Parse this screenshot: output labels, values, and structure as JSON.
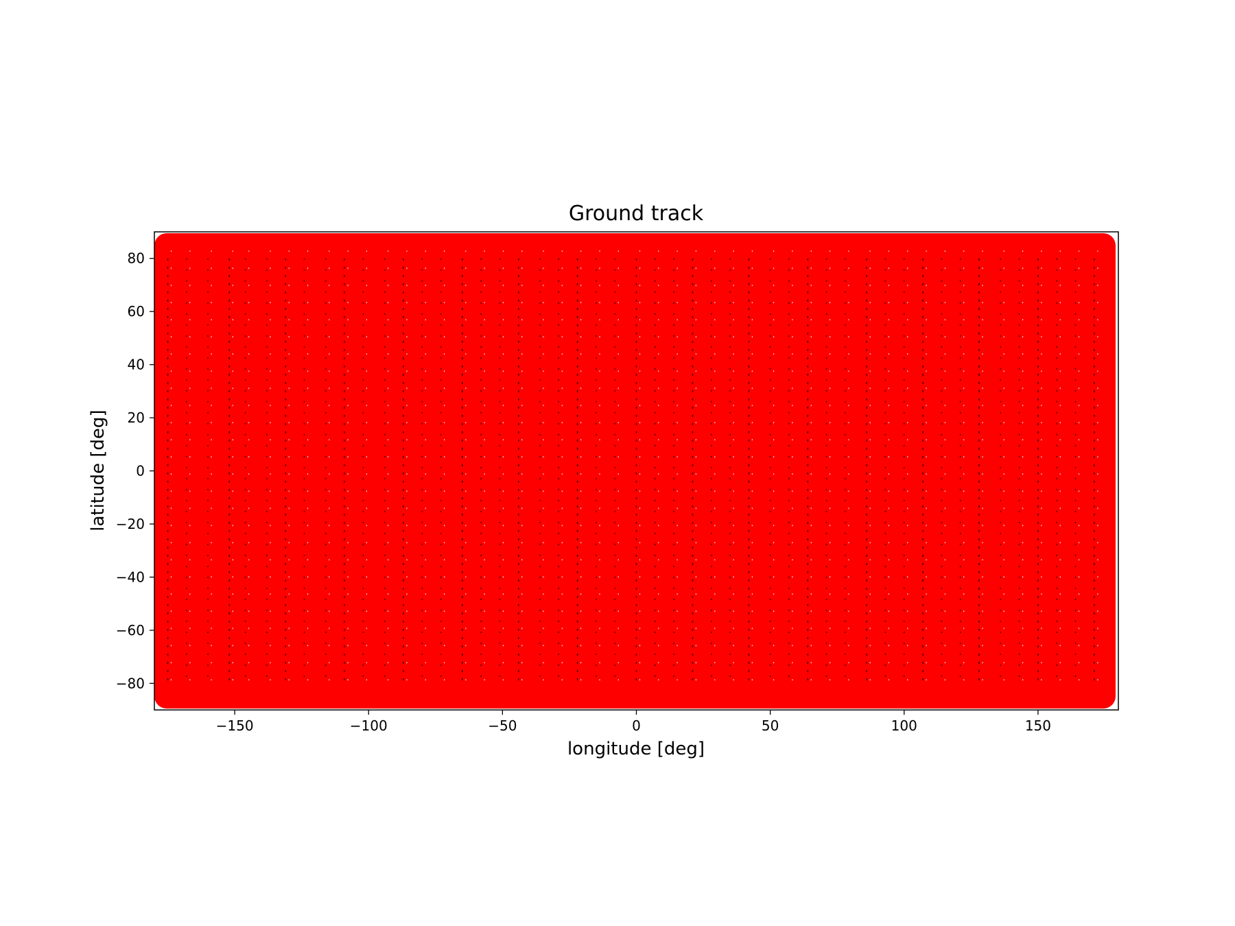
{
  "chart_data": {
    "type": "scatter",
    "title": "Ground track",
    "xlabel": "longitude [deg]",
    "ylabel": "latitude [deg]",
    "xlim": [
      -180,
      180
    ],
    "ylim": [
      -90,
      90
    ],
    "xticks": [
      -150,
      -100,
      -50,
      0,
      50,
      100,
      150
    ],
    "xtick_labels": [
      "−150",
      "−100",
      "−50",
      "0",
      "50",
      "100",
      "150"
    ],
    "yticks": [
      -80,
      -60,
      -40,
      -20,
      0,
      20,
      40,
      60,
      80
    ],
    "ytick_labels": [
      "−80",
      "−60",
      "−40",
      "−20",
      "0",
      "20",
      "40",
      "60",
      "80"
    ],
    "grid": false,
    "legend": "none",
    "track_color": "#ff0000",
    "gap_color": "#000000",
    "background_color": "#ffffff",
    "series": [
      {
        "description_free": true,
        "color": "#ff0000",
        "coverage": "dense polar-orbit ground track filling longitudes -180 to 180 and latitudes -90 to 90",
        "lat_range": [
          -90,
          90
        ],
        "lon_range": [
          -180,
          180
        ]
      }
    ],
    "gap_lines_lon": [
      -175,
      -168,
      -160,
      -152,
      -146,
      -138,
      -131,
      -124,
      -116,
      -109,
      -102,
      -94,
      -87,
      -80,
      -73,
      -65,
      -58,
      -51,
      -44,
      -36,
      -29,
      -22,
      -15,
      -8,
      0,
      7,
      14,
      21,
      28,
      35,
      42,
      50,
      57,
      64,
      71,
      78,
      86,
      93,
      100,
      107,
      114,
      121,
      128,
      136,
      143,
      150,
      157,
      164,
      171
    ]
  }
}
